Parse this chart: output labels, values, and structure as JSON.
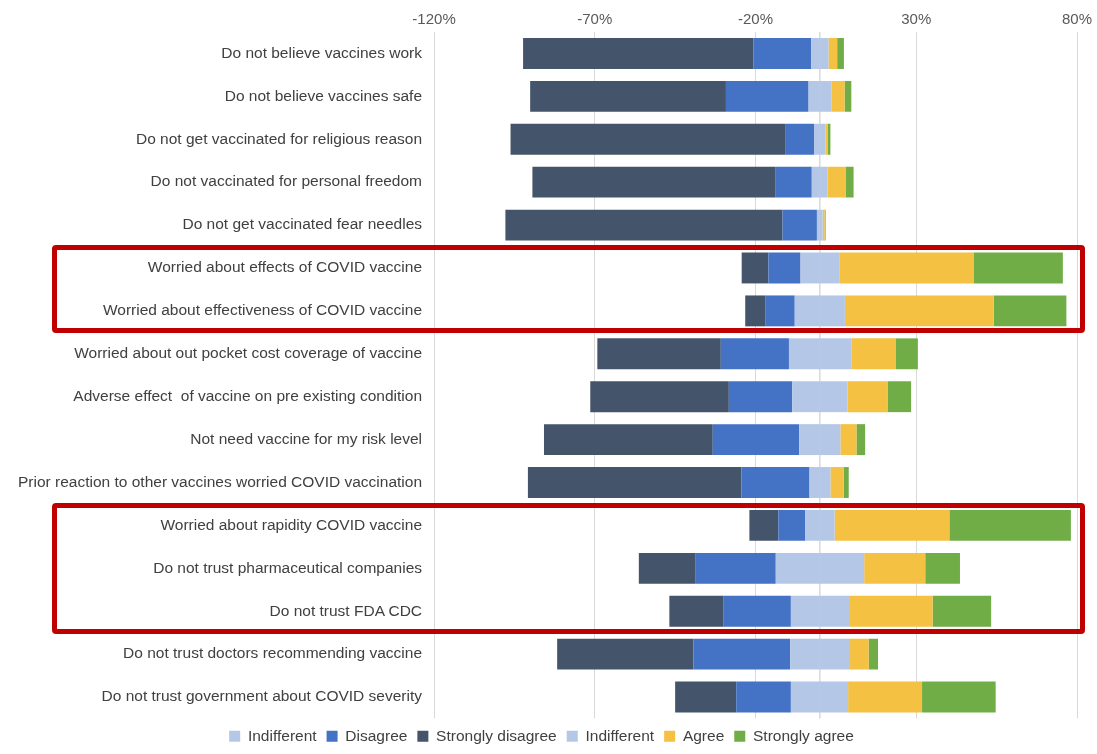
{
  "chart_data": {
    "type": "bar",
    "orientation": "horizontal",
    "stacked": true,
    "categories": [
      "Do not believe vaccines work",
      "Do not believe vaccines safe",
      "Do not get vaccinated for religious reason",
      "Do not vaccinated for personal freedom",
      "Do not get vaccinated fear needles",
      "Worried about effects of COVID vaccine",
      "Worried about effectiveness of COVID vaccine",
      "Worried about out pocket cost coverage of vaccine",
      "Adverse effect  of vaccine on pre existing condition",
      "Not need vaccine for my risk level",
      "Prior reaction to other vaccines worried COVID vaccination",
      "Worried about rapidity COVID vaccine",
      "Do not trust pharmaceutical companies",
      "Do not trust FDA CDC",
      "Do not trust doctors recommending vaccine",
      "Do not trust government about COVID severity"
    ],
    "series": [
      {
        "name": "Indifferent",
        "color": "#b4c7e7",
        "values": [
          -2.7,
          -3.5,
          -1.8,
          -2.5,
          -0.9,
          -6,
          -7.8,
          -9.6,
          -8.6,
          -6.4,
          -3.2,
          -4.6,
          -13.7,
          -9,
          -9.2,
          -9
        ]
      },
      {
        "name": "Disagree",
        "color": "#4472c4",
        "values": [
          -18,
          -25.7,
          -9,
          -11.4,
          -10.7,
          -10,
          -9.2,
          -21.2,
          -19.7,
          -26.9,
          -21.2,
          -8.3,
          -24.9,
          -20.9,
          -30.1,
          -17
        ]
      },
      {
        "name": "Strongly disagree",
        "color": "#44546a",
        "values": [
          -71.6,
          -60.9,
          -85.4,
          -75.5,
          -86.2,
          -8.3,
          -6.2,
          -38.4,
          -43.1,
          -52.5,
          -66.4,
          -9,
          -17.7,
          -16.9,
          -42.4,
          -19
        ]
      },
      {
        "name": "Indifferent",
        "color": "#b4c7e7",
        "values": [
          2.7,
          3.6,
          1.8,
          2.4,
          0.9,
          6.2,
          7.8,
          9.8,
          8.6,
          6.4,
          3.3,
          4.6,
          13.8,
          9.1,
          9.4,
          8.8
        ]
      },
      {
        "name": "Agree",
        "color": "#f4c142",
        "values": [
          2.7,
          4.1,
          0.6,
          5.6,
          0.6,
          41.6,
          46.3,
          13.9,
          12.6,
          5,
          4.1,
          35.7,
          19,
          26,
          5.8,
          23
        ]
      },
      {
        "name": "Strongly agree",
        "color": "#70ad47",
        "values": [
          2.1,
          2.1,
          0.9,
          2.5,
          0.3,
          27.8,
          22.6,
          6.8,
          7.2,
          2.7,
          1.6,
          37.8,
          10.8,
          18.2,
          2.9,
          22.9
        ]
      }
    ],
    "xlim": [
      -120,
      80
    ],
    "xticks": [
      {
        "value": -120,
        "label": "-120%"
      },
      {
        "value": -70,
        "label": "-70%"
      },
      {
        "value": -20,
        "label": "-20%"
      },
      {
        "value": 30,
        "label": "30%"
      },
      {
        "value": 80,
        "label": "80%"
      }
    ],
    "ref_lines": [
      {
        "axis": "x",
        "value": 0,
        "color": "#d9d9d9"
      }
    ],
    "grid": "x",
    "legend": "bottom"
  }
}
